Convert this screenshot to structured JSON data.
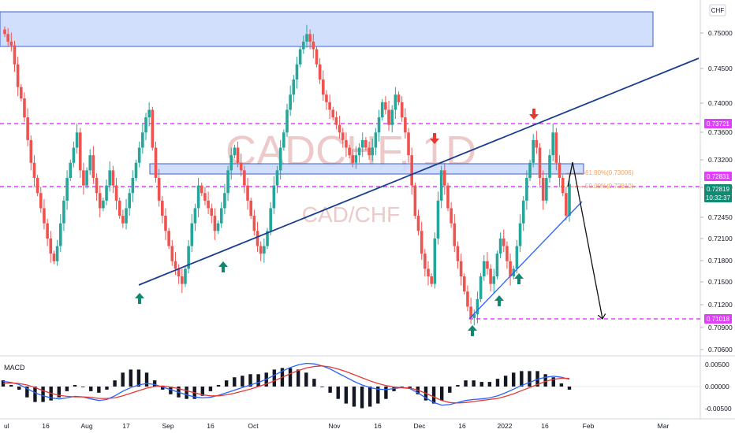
{
  "symbol": "CADCHF, 1D",
  "pair": "CAD/CHF",
  "currency_badge": "CHF",
  "indicator_label": "MACD",
  "colors": {
    "up": "#26a69a",
    "down": "#ef5350",
    "magenta": "#e040fb",
    "trend": "#1a3d8f",
    "zone_fill": "#c9d9fb",
    "zone_stroke": "#3a5fcd",
    "macd_line": "#2962ff",
    "signal_line": "#e53935",
    "fib": "#f4a261"
  },
  "price_axis": {
    "ticks": [
      "0.75000",
      "0.74500",
      "0.74000",
      "0.73600",
      "0.73200",
      "0.72800",
      "0.72450",
      "0.72100",
      "0.71800",
      "0.71500",
      "0.71200",
      "0.70900",
      "0.70600"
    ],
    "labels": [
      {
        "text": "0.73721",
        "kind": "magenta"
      },
      {
        "text": "0.72831",
        "kind": "magenta"
      },
      {
        "text": "0.72819",
        "kind": "green"
      },
      {
        "text": "10:32:37",
        "kind": "green"
      },
      {
        "text": "0.71018",
        "kind": "magenta"
      }
    ]
  },
  "macd_axis": {
    "ticks": [
      "0.00500",
      "0.00000",
      "-0.00500"
    ]
  },
  "time_axis": [
    "ul",
    "16",
    "Aug",
    "17",
    "Sep",
    "16",
    "Oct",
    "Nov",
    "16",
    "Dec",
    "16",
    "2022",
    "16",
    "Feb",
    "Mar"
  ],
  "fib_labels": [
    "61.80%(0.73006)",
    "50.00%(0.72810)"
  ],
  "chart_data": {
    "type": "candlestick",
    "title": "CADCHF, 1D",
    "subtitle": "CAD/CHF",
    "timeframe": "1D",
    "ylim": [
      0.7055,
      0.7525
    ],
    "x": [
      "Jul",
      "16",
      "Aug",
      "17",
      "Sep",
      "16",
      "Oct",
      "Nov",
      "16",
      "Dec",
      "16",
      "2022",
      "16",
      "Feb",
      "Mar"
    ],
    "horizontal_levels": [
      0.73721,
      0.72831,
      0.71018
    ],
    "current_price": 0.72819,
    "fibonacci": [
      {
        "level": "61.80%",
        "price": 0.73006
      },
      {
        "level": "50.00%",
        "price": 0.7281
      }
    ],
    "supply_zones": [
      [
        0.7482,
        0.7525
      ],
      [
        0.7298,
        0.731
      ]
    ],
    "closes": [
      0.748,
      0.747,
      0.7465,
      0.744,
      0.741,
      0.7395,
      0.737,
      0.734,
      0.731,
      0.729,
      0.727,
      0.725,
      0.723,
      0.721,
      0.719,
      0.718,
      0.72,
      0.723,
      0.726,
      0.729,
      0.731,
      0.733,
      0.735,
      0.73,
      0.728,
      0.73,
      0.732,
      0.729,
      0.727,
      0.725,
      0.726,
      0.728,
      0.73,
      0.728,
      0.726,
      0.724,
      0.723,
      0.725,
      0.727,
      0.729,
      0.731,
      0.733,
      0.735,
      0.737,
      0.738,
      0.733,
      0.729,
      0.726,
      0.724,
      0.722,
      0.72,
      0.718,
      0.717,
      0.716,
      0.715,
      0.717,
      0.72,
      0.723,
      0.725,
      0.728,
      0.727,
      0.726,
      0.725,
      0.724,
      0.722,
      0.723,
      0.725,
      0.727,
      0.73,
      0.732,
      0.733,
      0.731,
      0.73,
      0.728,
      0.726,
      0.724,
      0.722,
      0.72,
      0.719,
      0.72,
      0.722,
      0.725,
      0.728,
      0.73,
      0.733,
      0.735,
      0.738,
      0.74,
      0.742,
      0.744,
      0.746,
      0.747,
      0.748,
      0.747,
      0.746,
      0.744,
      0.742,
      0.74,
      0.739,
      0.738,
      0.737,
      0.736,
      0.735,
      0.734,
      0.733,
      0.732,
      0.731,
      0.732,
      0.733,
      0.734,
      0.733,
      0.732,
      0.733,
      0.735,
      0.737,
      0.739,
      0.738,
      0.736,
      0.738,
      0.74,
      0.739,
      0.737,
      0.735,
      0.732,
      0.728,
      0.724,
      0.722,
      0.719,
      0.717,
      0.716,
      0.715,
      0.721,
      0.726,
      0.73,
      0.728,
      0.725,
      0.723,
      0.72,
      0.718,
      0.716,
      0.714,
      0.712,
      0.7105,
      0.711,
      0.713,
      0.716,
      0.718,
      0.717,
      0.715,
      0.716,
      0.719,
      0.721,
      0.72,
      0.718,
      0.716,
      0.717,
      0.72,
      0.723,
      0.726,
      0.729,
      0.731,
      0.734,
      0.733,
      0.729,
      0.726,
      0.729,
      0.732,
      0.735,
      0.731,
      0.729,
      0.727,
      0.724,
      0.7282
    ],
    "macd": {
      "series": [
        {
          "name": "MACD",
          "values": [
            0.001,
            0.0008,
            0.0004,
            -0.0004,
            -0.0012,
            -0.0018,
            -0.0022,
            -0.0024,
            -0.0022,
            -0.0019,
            -0.002,
            -0.0024,
            -0.0027,
            -0.0025,
            -0.0018,
            -0.0009,
            -0.0002,
            0.0003,
            0.0006,
            0.0004,
            -0.0001,
            -0.0006,
            -0.0011,
            -0.0016,
            -0.002,
            -0.0022,
            -0.0021,
            -0.0017,
            -0.0012,
            -0.0007,
            -0.0002,
            0.0003,
            0.0008,
            0.0014,
            0.0022,
            0.003,
            0.0037,
            0.0042,
            0.0045,
            0.0044,
            0.004,
            0.0034,
            0.0026,
            0.0018,
            0.001,
            0.0003,
            -0.0002,
            -0.0005,
            -0.0006,
            -0.0004,
            -0.0002,
            -0.0004,
            -0.0012,
            -0.0022,
            -0.0031,
            -0.0036,
            -0.0035,
            -0.0031,
            -0.0027,
            -0.0025,
            -0.0024,
            -0.0022,
            -0.0018,
            -0.0012,
            -0.0005,
            0.0002,
            0.0008,
            0.0014,
            0.0018,
            0.002,
            0.0018,
            0.0014
          ]
        },
        {
          "name": "Signal",
          "values": [
            0.0006,
            0.0007,
            0.0006,
            0.0003,
            -0.0002,
            -0.0008,
            -0.0013,
            -0.0017,
            -0.0019,
            -0.002,
            -0.002,
            -0.0021,
            -0.0023,
            -0.0023,
            -0.0022,
            -0.0018,
            -0.0013,
            -0.0008,
            -0.0003,
            0.0,
            0.0001,
            -0.0001,
            -0.0004,
            -0.0008,
            -0.0012,
            -0.0016,
            -0.0018,
            -0.0018,
            -0.0016,
            -0.0013,
            -0.0009,
            -0.0005,
            0.0,
            0.0005,
            0.0011,
            0.0018,
            0.0025,
            0.0031,
            0.0036,
            0.0039,
            0.004,
            0.0038,
            0.0034,
            0.0029,
            0.0023,
            0.0017,
            0.0011,
            0.0006,
            0.0002,
            -0.0001,
            -0.0002,
            -0.0003,
            -0.0007,
            -0.0013,
            -0.002,
            -0.0027,
            -0.0031,
            -0.0032,
            -0.0031,
            -0.0029,
            -0.0027,
            -0.0025,
            -0.0023,
            -0.0019,
            -0.0014,
            -0.0008,
            -0.0002,
            0.0004,
            0.001,
            0.0014,
            0.0016,
            0.0016
          ]
        }
      ]
    }
  }
}
